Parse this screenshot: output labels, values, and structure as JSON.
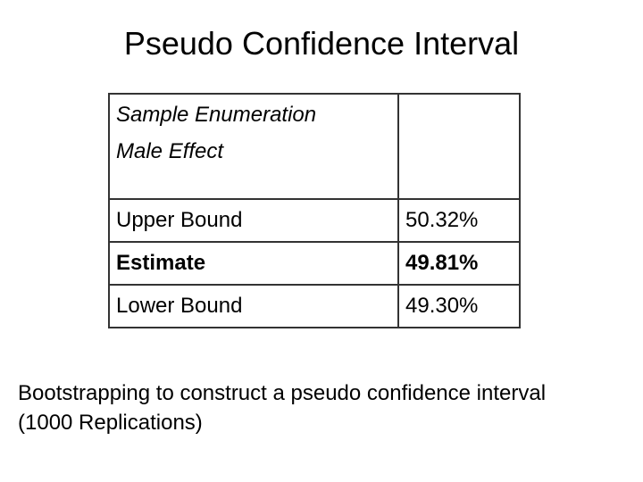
{
  "title": "Pseudo Confidence Interval",
  "table": {
    "header": [
      "Sample Enumeration",
      "Male Effect"
    ],
    "rows": [
      [
        "Upper Bound",
        "50.32%"
      ],
      [
        "Estimate",
        "49.81%"
      ],
      [
        "Lower Bound",
        "49.30%"
      ]
    ]
  },
  "caption": [
    "Bootstrapping to construct a pseudo confidence interval",
    "(1000 Replications)"
  ]
}
